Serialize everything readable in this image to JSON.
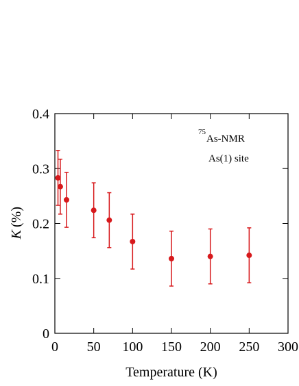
{
  "chart_data": {
    "type": "errorbar",
    "xlabel": "Temperature (K)",
    "ylabel_symbol": "K",
    "ylabel_unit": "(%)",
    "annotation": {
      "isotope": "75",
      "nucleus": "As-NMR",
      "site": "As(1) site"
    },
    "x": [
      4,
      7,
      15,
      50,
      70,
      100,
      150,
      200,
      250
    ],
    "series": [
      {
        "color": "#d7191c",
        "values": [
          0.283,
          0.267,
          0.243,
          0.224,
          0.206,
          0.167,
          0.136,
          0.14,
          0.142
        ],
        "errors": [
          0.05,
          0.05,
          0.05,
          0.05,
          0.05,
          0.05,
          0.05,
          0.05,
          0.05
        ]
      }
    ],
    "xlim": [
      0,
      300
    ],
    "xticks": [
      0,
      50,
      100,
      150,
      200,
      250,
      300
    ],
    "ylim": [
      0,
      0.4
    ],
    "yticks": [
      0,
      0.1,
      0.2,
      0.3,
      0.4
    ]
  }
}
